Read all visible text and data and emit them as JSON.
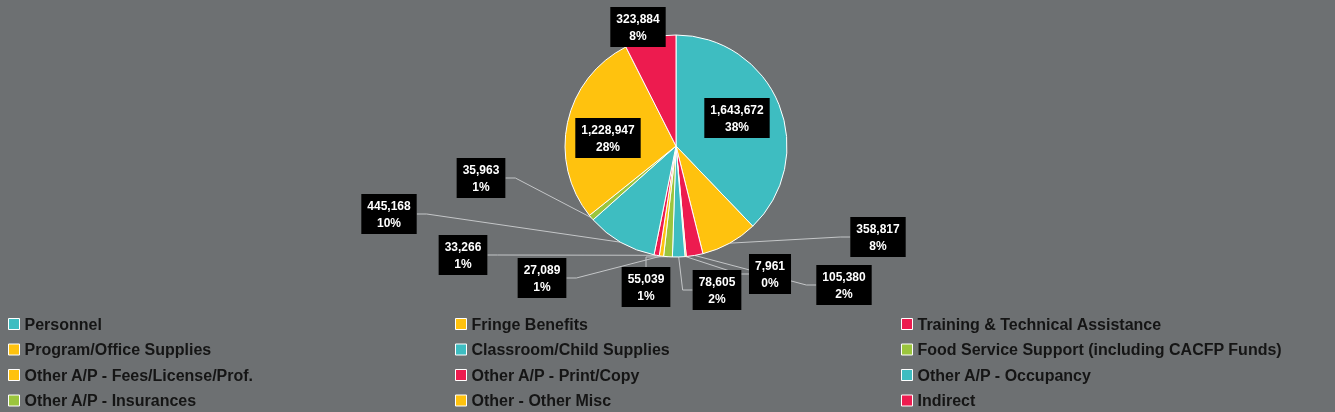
{
  "chart_data": {
    "type": "pie",
    "categories": [
      "Personnel",
      "Fringe Benefits",
      "Training & Technical Assistance",
      "Program/Office Supplies",
      "Classroom/Child Supplies",
      "Food Service Support (including CACFP Funds)",
      "Other A/P - Fees/License/Prof.",
      "Other A/P - Print/Copy",
      "Other A/P - Occupancy",
      "Other A/P - Insurances",
      "Other - Other Misc",
      "Indirect"
    ],
    "values": [
      1643672,
      358817,
      105380,
      7961,
      78605,
      55039,
      27089,
      33266,
      445168,
      35963,
      1228947,
      323884
    ],
    "colors": [
      "#3ebdc1",
      "#ffc20e",
      "#ed1b4f",
      "#ffc20e",
      "#3ebdc1",
      "#9bc53d",
      "#ffc20e",
      "#ed1b4f",
      "#3ebdc1",
      "#9bc53d",
      "#ffc20e",
      "#ed1b4f"
    ],
    "value_labels": [
      "1,643,672\n38%",
      "358,817\n8%",
      "105,380\n2%",
      "7,961\n0%",
      "78,605\n2%",
      "55,039\n1%",
      "27,089\n1%",
      "33,266\n1%",
      "445,168\n10%",
      "35,963\n1%",
      "1,228,947\n28%",
      "323,884\n8%"
    ],
    "legend": "bottom"
  }
}
